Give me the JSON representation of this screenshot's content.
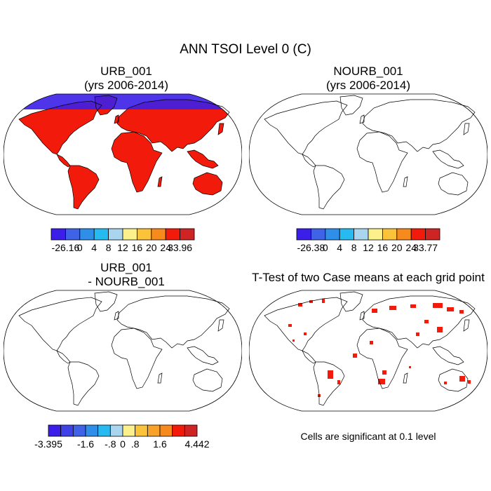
{
  "title": "ANN TSOI Level 0 (C)",
  "panels": [
    {
      "id": "urb",
      "title_line1": "URB_001",
      "title_line2": "(yrs 2006-2014)",
      "colorbar": {
        "labels": [
          "-26.16",
          "0",
          "4",
          "8",
          "12",
          "16",
          "20",
          "24",
          "33.96"
        ],
        "colors": [
          "#3b1fe8",
          "#3f62e6",
          "#2f8fe8",
          "#27baf0",
          "#a9d6ee",
          "#fbf08c",
          "#fbc33a",
          "#f68a1c",
          "#f21a0a",
          "#cf2424"
        ]
      }
    },
    {
      "id": "nourb",
      "title_line1": "NOURB_001",
      "title_line2": "(yrs 2006-2014)",
      "colorbar": {
        "labels": [
          "-26.38",
          "0",
          "4",
          "8",
          "12",
          "16",
          "20",
          "24",
          "33.77"
        ],
        "colors": [
          "#3b1fe8",
          "#3f62e6",
          "#2f8fe8",
          "#27baf0",
          "#a9d6ee",
          "#fbf08c",
          "#fbc33a",
          "#f68a1c",
          "#f21a0a",
          "#cf2424"
        ]
      }
    },
    {
      "id": "diff",
      "title_line1": "URB_001",
      "title_line2": "- NOURB_001",
      "colorbar": {
        "labels": [
          "-3.395",
          "-1.6",
          "-.8",
          "0",
          ".8",
          "1.6",
          "4.442"
        ],
        "label_boundaries": [
          0,
          3,
          5,
          6,
          7,
          9,
          12
        ],
        "colors": [
          "#3b1fe8",
          "#3f42e6",
          "#3f62e6",
          "#2f8fe8",
          "#27baf0",
          "#a9d6ee",
          "#fbf08c",
          "#fbc33a",
          "#f8a22a",
          "#f68a1c",
          "#f21a0a",
          "#cf2424"
        ]
      }
    },
    {
      "id": "ttest",
      "title_line1": "T-Test of two Case means at each grid point",
      "title_line2": "",
      "note": "Cells are significant at 0.1 level"
    }
  ]
}
